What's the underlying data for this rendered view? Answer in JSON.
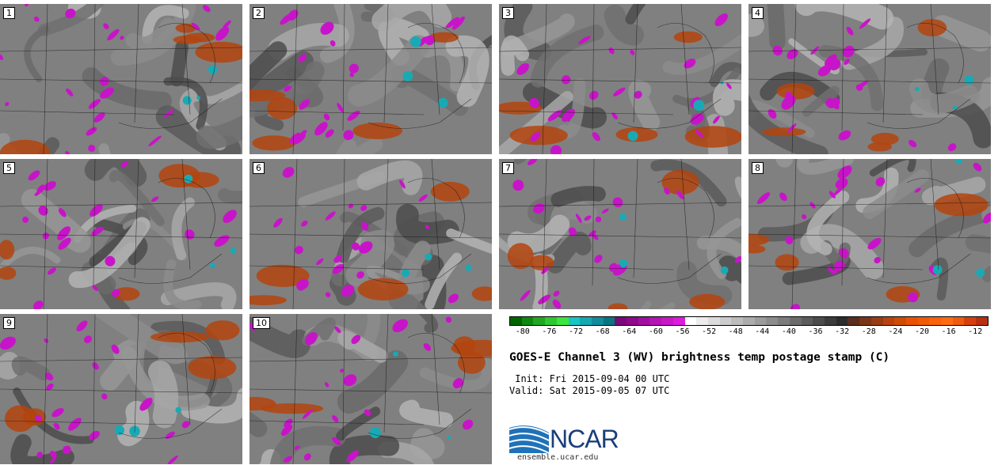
{
  "members": [
    "1",
    "2",
    "3",
    "4",
    "5",
    "6",
    "7",
    "8",
    "9",
    "10"
  ],
  "colorbar": {
    "ticks": [
      "-80",
      "-76",
      "-72",
      "-68",
      "-64",
      "-60",
      "-56",
      "-52",
      "-48",
      "-44",
      "-40",
      "-36",
      "-32",
      "-28",
      "-24",
      "-20",
      "-16",
      "-12"
    ],
    "colors": [
      "#006400",
      "#108810",
      "#20a820",
      "#30c830",
      "#3ce43c",
      "#18c4c4",
      "#14a8b0",
      "#108c9c",
      "#0a7480",
      "#7a0a7a",
      "#8c0a8c",
      "#a010a0",
      "#b414b4",
      "#c818c8",
      "#dc1cdc",
      "#ffffff",
      "#ececec",
      "#dcdcdc",
      "#cccccc",
      "#bcbcbc",
      "#acacac",
      "#9c9c9c",
      "#8c8c8c",
      "#7c7c7c",
      "#6c6c6c",
      "#5c5c5c",
      "#4c4c4c",
      "#3c3c3c",
      "#2c2c2c",
      "#5a2d1e",
      "#7a3518",
      "#9a3c12",
      "#b8430c",
      "#d04a08",
      "#e85206",
      "#f05a04",
      "#f86208",
      "#ff6a10",
      "#ee5a10",
      "#d44010",
      "#b83010"
    ]
  },
  "title": "GOES-E Channel 3 (WV) brightness temp postage stamp (C)",
  "init": " Init: Fri 2015-09-04 00 UTC",
  "valid": "Valid: Sat 2015-09-05 07 UTC",
  "logo": {
    "name": "NCAR",
    "url": "ensemble.ucar.edu"
  }
}
